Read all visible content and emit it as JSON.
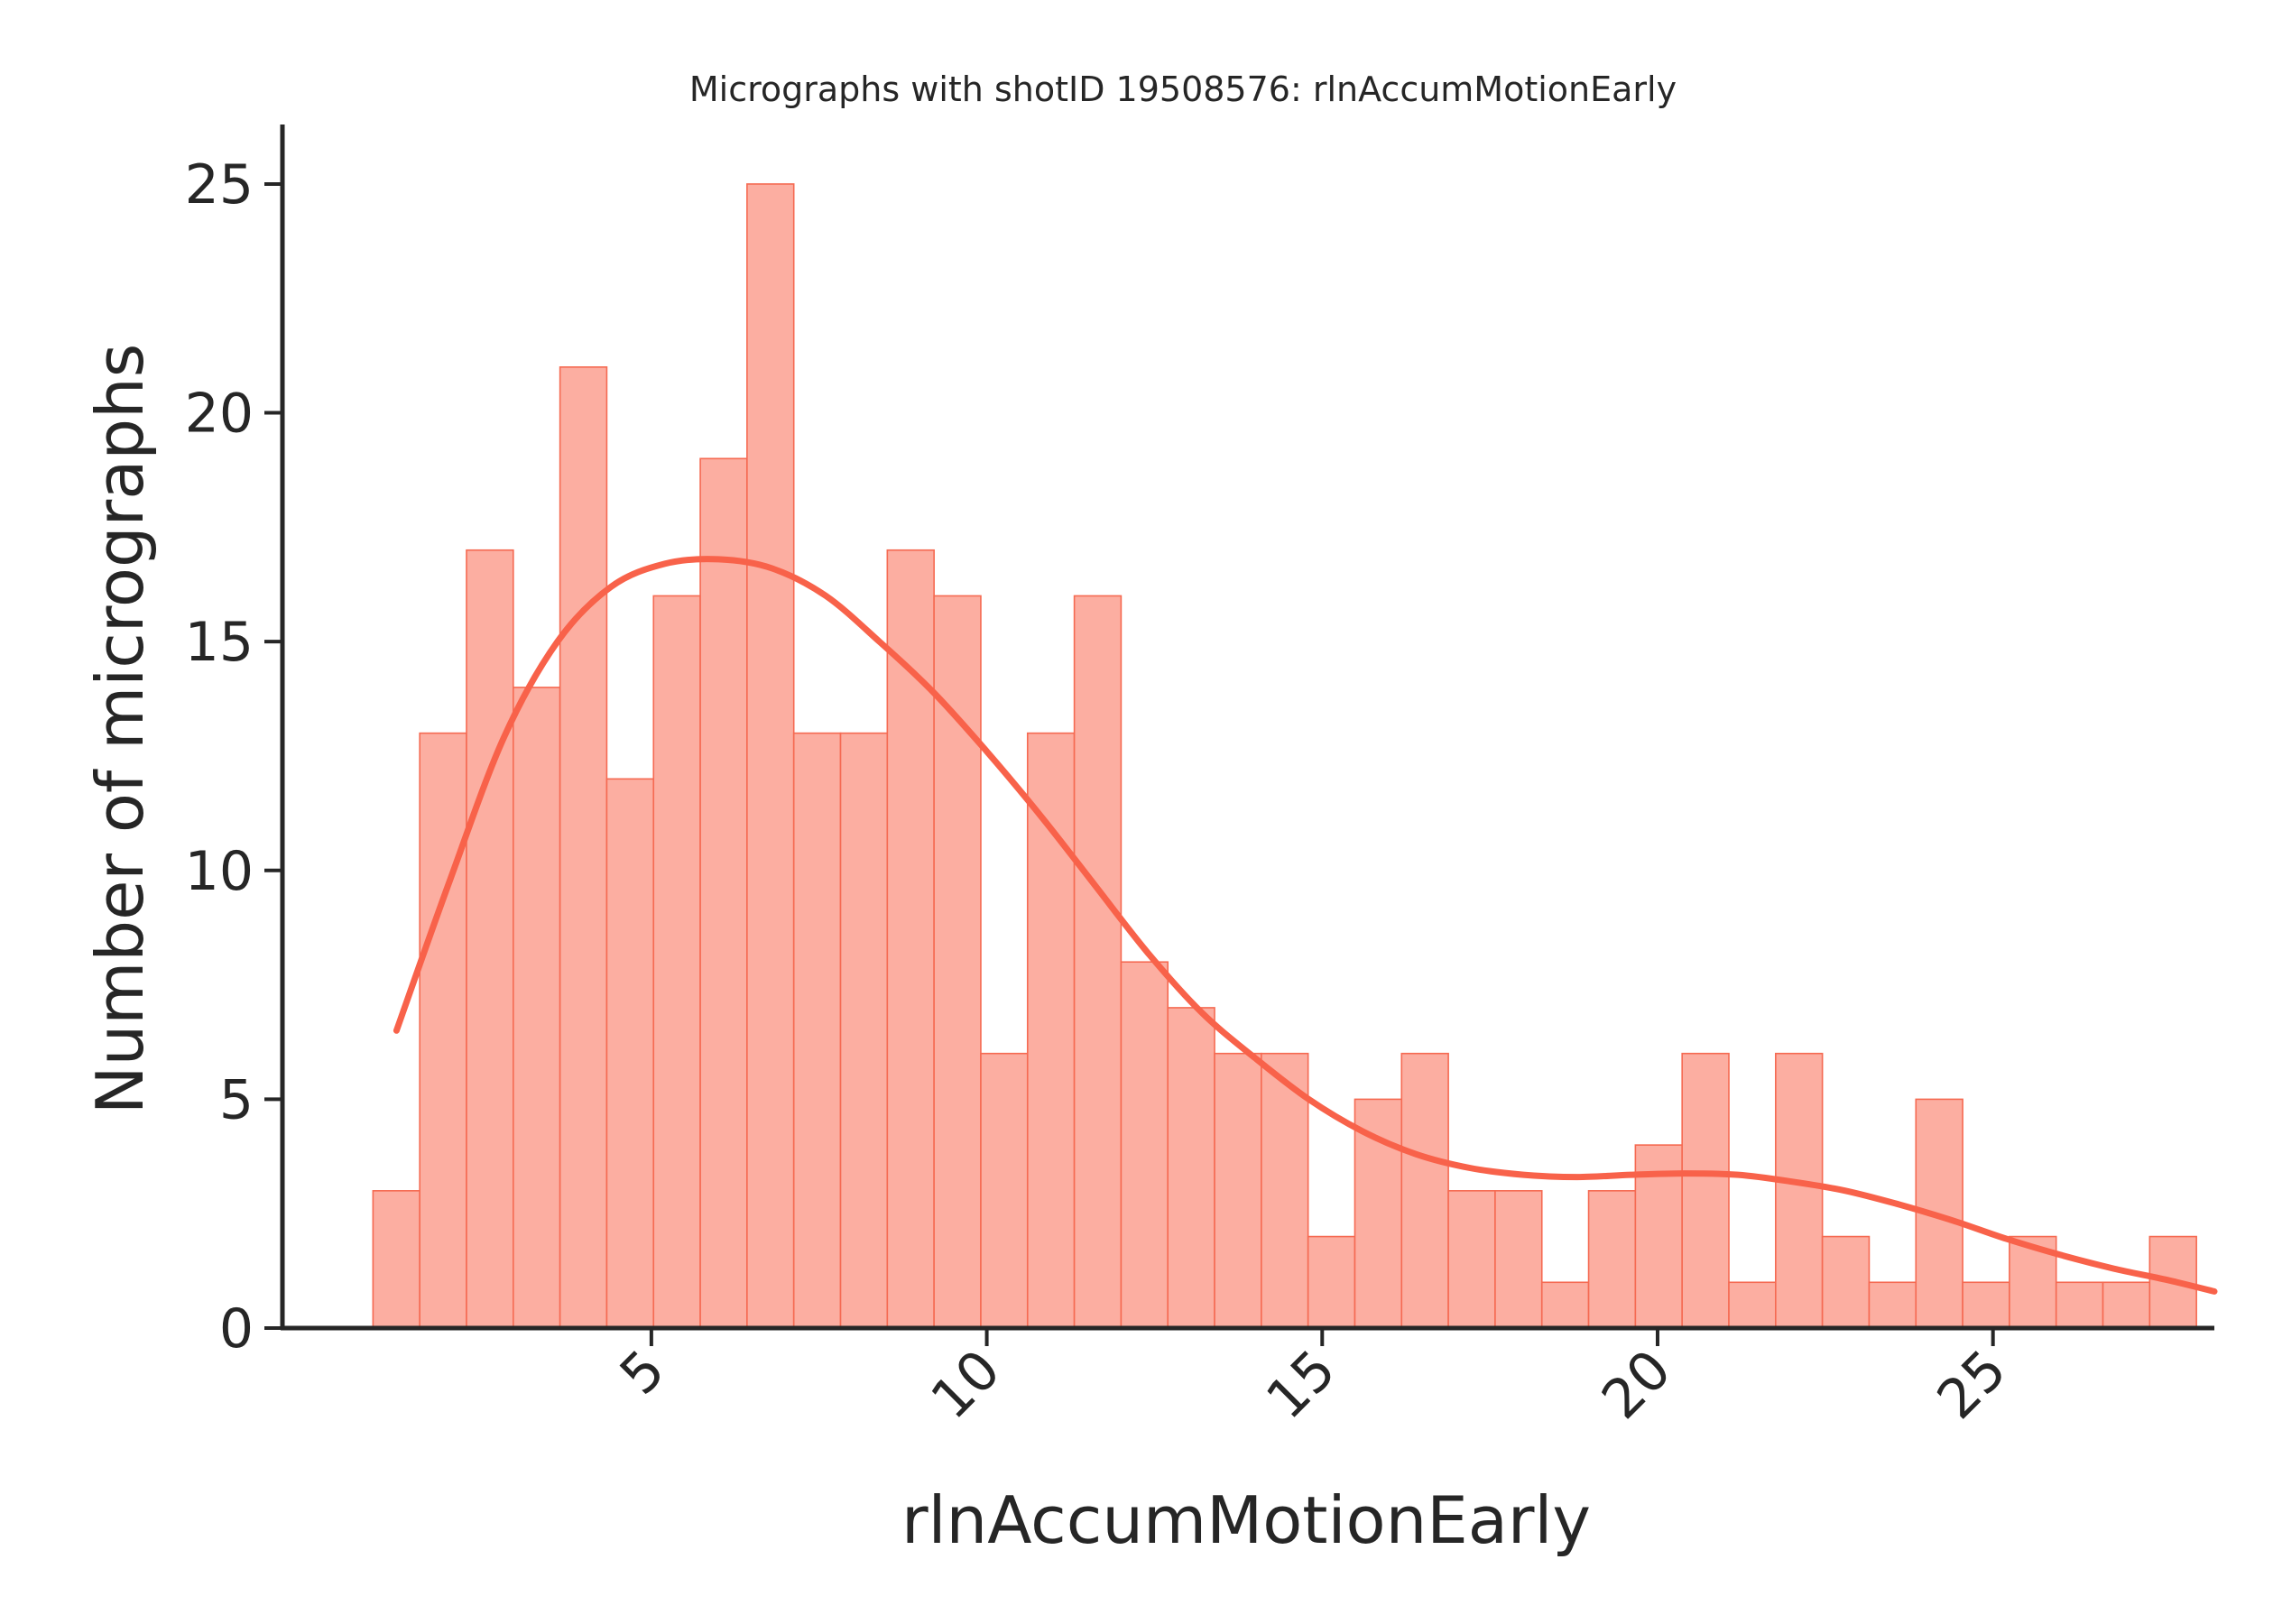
{
  "chart_data": {
    "type": "bar",
    "variant": "histogram-with-kde",
    "title": "Micrographs with shotID 19508576: rlnAccumMotionEarly",
    "xlabel": "rlnAccumMotionEarly",
    "ylabel": "Number of micrographs",
    "xlim": [
      -0.5,
      28.3
    ],
    "ylim": [
      0,
      26.3
    ],
    "xticks": [
      5,
      10,
      15,
      20,
      25
    ],
    "yticks": [
      0,
      5,
      10,
      15,
      20,
      25
    ],
    "bin_width": 0.697,
    "bin_edges_start": 0.85,
    "counts": [
      3,
      13,
      17,
      14,
      21,
      12,
      16,
      19,
      25,
      13,
      13,
      17,
      16,
      6,
      13,
      16,
      8,
      7,
      6,
      6,
      2,
      5,
      6,
      3,
      3,
      1,
      3,
      4,
      6,
      1,
      6,
      2,
      1,
      5,
      1,
      2,
      1,
      1,
      2
    ],
    "kde": {
      "x": [
        1.2,
        2.0,
        2.8,
        3.6,
        4.4,
        5.2,
        6.0,
        6.8,
        7.6,
        8.4,
        9.2,
        10.0,
        10.8,
        11.6,
        12.4,
        13.2,
        14.0,
        14.8,
        15.6,
        16.4,
        17.2,
        18.0,
        18.8,
        19.6,
        20.4,
        21.2,
        22.0,
        22.8,
        23.6,
        24.4,
        25.2,
        26.0,
        26.8,
        27.6,
        28.3
      ],
      "y": [
        6.5,
        9.8,
        12.9,
        15.0,
        16.2,
        16.7,
        16.8,
        16.6,
        16.0,
        15.0,
        13.9,
        12.6,
        11.2,
        9.7,
        8.2,
        6.9,
        5.9,
        5.0,
        4.3,
        3.8,
        3.5,
        3.35,
        3.3,
        3.35,
        3.38,
        3.35,
        3.2,
        3.0,
        2.7,
        2.35,
        1.95,
        1.6,
        1.3,
        1.05,
        0.8
      ]
    },
    "colors": {
      "bar_fill": "#fcaea1",
      "bar_edge": "#f56a52",
      "line": "#f8624a",
      "axis": "#262626"
    },
    "grid": false,
    "spines": "left-bottom"
  }
}
